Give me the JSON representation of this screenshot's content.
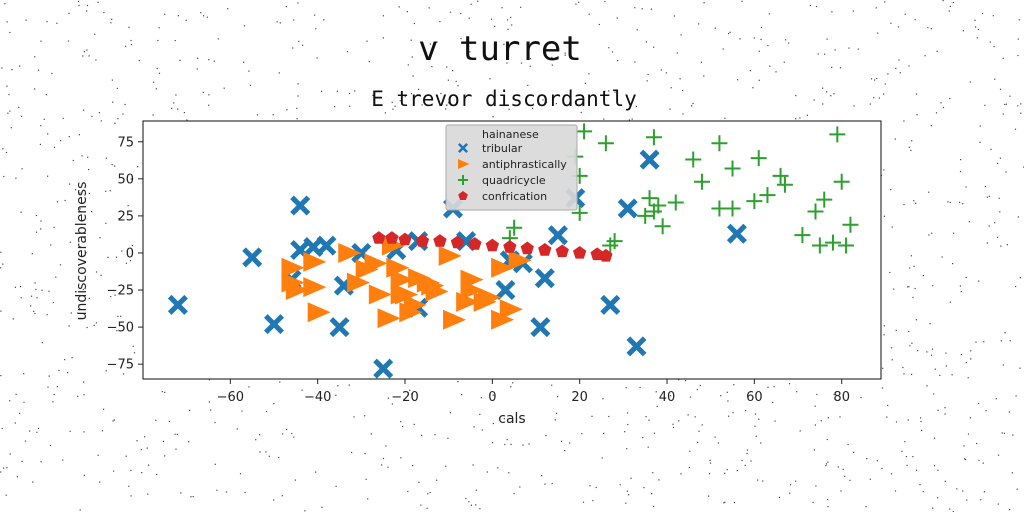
{
  "chart_data": {
    "type": "scatter",
    "suptitle": "v turret",
    "title": "E trevor discordantly",
    "xlabel": "cals",
    "ylabel": "undiscoverableness",
    "xlim": [
      -80,
      89
    ],
    "ylim": [
      -85,
      89
    ],
    "xticks": [
      -60,
      -40,
      -20,
      0,
      20,
      40,
      60,
      80
    ],
    "yticks": [
      -75,
      -50,
      -25,
      0,
      25,
      50,
      75
    ],
    "grid": false,
    "legend": {
      "title": "hainanese",
      "placement": "top-center"
    },
    "series": [
      {
        "name": "tribular",
        "marker": "X",
        "color": "#1f77b4",
        "points": [
          [
            -72,
            -35
          ],
          [
            -55,
            -3
          ],
          [
            -50,
            -48
          ],
          [
            -44,
            32
          ],
          [
            -44,
            2
          ],
          [
            -41,
            4
          ],
          [
            -38,
            5
          ],
          [
            -46,
            -18
          ],
          [
            -34,
            -22
          ],
          [
            -35,
            -50
          ],
          [
            -30,
            0
          ],
          [
            -25,
            -78
          ],
          [
            -22,
            2
          ],
          [
            -17,
            8
          ],
          [
            -17,
            -37
          ],
          [
            -9,
            30
          ],
          [
            -6,
            8
          ],
          [
            4,
            -5
          ],
          [
            7,
            -7
          ],
          [
            3,
            -25
          ],
          [
            11,
            -50
          ],
          [
            12,
            -17
          ],
          [
            15,
            12
          ],
          [
            19,
            37
          ],
          [
            27,
            -35
          ],
          [
            31,
            30
          ],
          [
            33,
            -63
          ],
          [
            36,
            63
          ],
          [
            56,
            13
          ]
        ]
      },
      {
        "name": "antiphrastically",
        "marker": ">",
        "color": "#ff7f0e",
        "points": [
          [
            -46,
            -10
          ],
          [
            -46,
            -20
          ],
          [
            -45,
            -25
          ],
          [
            -41,
            -6
          ],
          [
            -41,
            -23
          ],
          [
            -40,
            -40
          ],
          [
            -33,
            0
          ],
          [
            -31,
            -20
          ],
          [
            -29,
            -11
          ],
          [
            -27,
            -7
          ],
          [
            -26,
            -28
          ],
          [
            -24,
            -44
          ],
          [
            -23,
            5
          ],
          [
            -22,
            -10
          ],
          [
            -21,
            -18
          ],
          [
            -21,
            -28
          ],
          [
            -20,
            -28
          ],
          [
            -19,
            -40
          ],
          [
            -18,
            -35
          ],
          [
            -17,
            -17
          ],
          [
            -15,
            -20
          ],
          [
            -14,
            -22
          ],
          [
            -13,
            -26
          ],
          [
            -10,
            -2
          ],
          [
            -9,
            -45
          ],
          [
            -6,
            -33
          ],
          [
            -5,
            -25
          ],
          [
            -5,
            -18
          ],
          [
            -2,
            -33
          ],
          [
            -1,
            -30
          ],
          [
            2,
            -10
          ],
          [
            2,
            -45
          ],
          [
            4,
            -38
          ],
          [
            6,
            -5
          ]
        ]
      },
      {
        "name": "quadricycle",
        "marker": "+",
        "color": "#2ca02c",
        "points": [
          [
            5,
            17
          ],
          [
            4,
            10
          ],
          [
            19,
            65
          ],
          [
            20,
            52
          ],
          [
            21,
            82
          ],
          [
            20,
            27
          ],
          [
            26,
            74
          ],
          [
            27,
            5
          ],
          [
            28,
            8
          ],
          [
            35,
            25
          ],
          [
            36,
            37
          ],
          [
            37,
            78
          ],
          [
            37,
            28
          ],
          [
            38,
            32
          ],
          [
            39,
            18
          ],
          [
            42,
            34
          ],
          [
            46,
            63
          ],
          [
            48,
            48
          ],
          [
            52,
            30
          ],
          [
            52,
            74
          ],
          [
            55,
            57
          ],
          [
            55,
            30
          ],
          [
            60,
            35
          ],
          [
            61,
            64
          ],
          [
            63,
            39
          ],
          [
            66,
            52
          ],
          [
            67,
            46
          ],
          [
            71,
            12
          ],
          [
            74,
            28
          ],
          [
            76,
            36
          ],
          [
            75,
            5
          ],
          [
            78,
            7
          ],
          [
            79,
            80
          ],
          [
            80,
            48
          ],
          [
            81,
            5
          ],
          [
            82,
            19
          ]
        ]
      },
      {
        "name": "confrication",
        "marker": "p",
        "color": "#d62728",
        "points": [
          [
            -26,
            10
          ],
          [
            -23,
            10
          ],
          [
            -20,
            9
          ],
          [
            -16,
            8
          ],
          [
            -12,
            8
          ],
          [
            -8,
            7
          ],
          [
            -4,
            6
          ],
          [
            0,
            5
          ],
          [
            4,
            4
          ],
          [
            8,
            3
          ],
          [
            12,
            2
          ],
          [
            16,
            1
          ],
          [
            20,
            0
          ],
          [
            24,
            -1
          ],
          [
            26,
            -2
          ]
        ]
      }
    ]
  }
}
